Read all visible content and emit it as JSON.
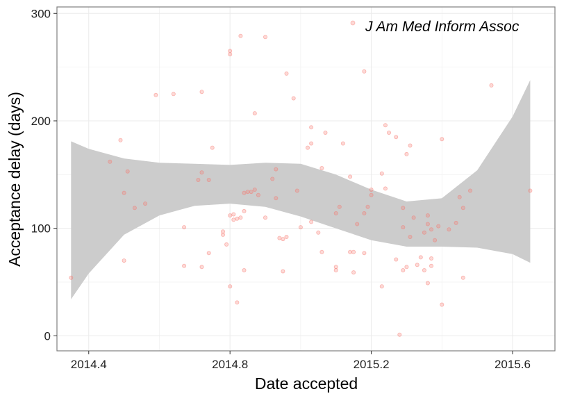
{
  "chart_data": {
    "type": "scatter",
    "title": "",
    "xlabel": "Date accepted",
    "ylabel": "Acceptance delay (days)",
    "xlim": [
      2014.31,
      2015.72
    ],
    "ylim": [
      -14,
      306
    ],
    "x_ticks": [
      "2014.4",
      "2014.8",
      "2015.2",
      "2015.6"
    ],
    "x_tick_values": [
      2014.4,
      2014.8,
      2015.2,
      2015.6
    ],
    "y_ticks": [
      "0",
      "100",
      "200",
      "300"
    ],
    "y_tick_values": [
      0,
      100,
      200,
      300
    ],
    "grid": true,
    "legend": "top-right",
    "series": [
      {
        "name": "J Am Med Inform Assoc",
        "color": "#f8766d",
        "points": [
          [
            2014.35,
            54
          ],
          [
            2014.46,
            162
          ],
          [
            2014.49,
            182
          ],
          [
            2014.5,
            133
          ],
          [
            2014.5,
            70
          ],
          [
            2014.51,
            153
          ],
          [
            2014.53,
            119
          ],
          [
            2014.56,
            123
          ],
          [
            2014.59,
            224
          ],
          [
            2014.64,
            225
          ],
          [
            2014.67,
            101
          ],
          [
            2014.67,
            65
          ],
          [
            2014.71,
            145
          ],
          [
            2014.72,
            227
          ],
          [
            2014.72,
            152
          ],
          [
            2014.72,
            64
          ],
          [
            2014.74,
            145
          ],
          [
            2014.74,
            77
          ],
          [
            2014.75,
            175
          ],
          [
            2014.78,
            97
          ],
          [
            2014.78,
            94
          ],
          [
            2014.79,
            85
          ],
          [
            2014.8,
            265
          ],
          [
            2014.8,
            262
          ],
          [
            2014.8,
            112
          ],
          [
            2014.8,
            46
          ],
          [
            2014.81,
            113
          ],
          [
            2014.81,
            108
          ],
          [
            2014.82,
            109
          ],
          [
            2014.82,
            31
          ],
          [
            2014.83,
            110
          ],
          [
            2014.83,
            279
          ],
          [
            2014.84,
            116
          ],
          [
            2014.84,
            133
          ],
          [
            2014.84,
            61
          ],
          [
            2014.85,
            134
          ],
          [
            2014.86,
            134
          ],
          [
            2014.87,
            136
          ],
          [
            2014.87,
            207
          ],
          [
            2014.88,
            131
          ],
          [
            2014.9,
            278
          ],
          [
            2014.9,
            110
          ],
          [
            2014.92,
            146
          ],
          [
            2014.93,
            128
          ],
          [
            2014.93,
            155
          ],
          [
            2014.94,
            91
          ],
          [
            2014.95,
            90
          ],
          [
            2014.95,
            60
          ],
          [
            2014.96,
            92
          ],
          [
            2014.96,
            244
          ],
          [
            2014.98,
            221
          ],
          [
            2014.99,
            135
          ],
          [
            2015.0,
            101
          ],
          [
            2015.02,
            175
          ],
          [
            2015.03,
            179
          ],
          [
            2015.03,
            194
          ],
          [
            2015.03,
            106
          ],
          [
            2015.05,
            96
          ],
          [
            2015.06,
            78
          ],
          [
            2015.06,
            156
          ],
          [
            2015.07,
            189
          ],
          [
            2015.1,
            114
          ],
          [
            2015.1,
            64
          ],
          [
            2015.1,
            61
          ],
          [
            2015.11,
            120
          ],
          [
            2015.12,
            179
          ],
          [
            2015.14,
            148
          ],
          [
            2015.14,
            78
          ],
          [
            2015.15,
            78
          ],
          [
            2015.15,
            59
          ],
          [
            2015.16,
            104
          ],
          [
            2015.18,
            246
          ],
          [
            2015.18,
            114
          ],
          [
            2015.18,
            77
          ],
          [
            2015.19,
            120
          ],
          [
            2015.2,
            131
          ],
          [
            2015.2,
            136
          ],
          [
            2015.23,
            151
          ],
          [
            2015.23,
            46
          ],
          [
            2015.24,
            196
          ],
          [
            2015.24,
            137
          ],
          [
            2015.25,
            189
          ],
          [
            2015.27,
            185
          ],
          [
            2015.27,
            71
          ],
          [
            2015.28,
            1
          ],
          [
            2015.29,
            119
          ],
          [
            2015.29,
            101
          ],
          [
            2015.29,
            61
          ],
          [
            2015.3,
            169
          ],
          [
            2015.3,
            64
          ],
          [
            2015.31,
            177
          ],
          [
            2015.31,
            92
          ],
          [
            2015.32,
            110
          ],
          [
            2015.33,
            66
          ],
          [
            2015.34,
            73
          ],
          [
            2015.35,
            96
          ],
          [
            2015.35,
            61
          ],
          [
            2015.36,
            112
          ],
          [
            2015.36,
            104
          ],
          [
            2015.36,
            49
          ],
          [
            2015.37,
            99
          ],
          [
            2015.37,
            72
          ],
          [
            2015.37,
            65
          ],
          [
            2015.38,
            89
          ],
          [
            2015.39,
            102
          ],
          [
            2015.4,
            183
          ],
          [
            2015.4,
            29
          ],
          [
            2015.42,
            99
          ],
          [
            2015.44,
            105
          ],
          [
            2015.45,
            129
          ],
          [
            2015.46,
            119
          ],
          [
            2015.46,
            54
          ],
          [
            2015.48,
            135
          ],
          [
            2015.54,
            233
          ],
          [
            2015.65,
            135
          ]
        ]
      }
    ],
    "confidence_band": {
      "x": [
        2014.35,
        2014.4,
        2014.5,
        2014.6,
        2014.7,
        2014.8,
        2014.9,
        2015.0,
        2015.1,
        2015.2,
        2015.3,
        2015.4,
        2015.5,
        2015.6,
        2015.65
      ],
      "upper": [
        181,
        174,
        165,
        161,
        160,
        159,
        161,
        160,
        150,
        136,
        125,
        128,
        154,
        204,
        238
      ],
      "lower": [
        34,
        58,
        94,
        112,
        121,
        123,
        120,
        111,
        100,
        89,
        83,
        83,
        82,
        76,
        68
      ],
      "color": "#cccccc"
    }
  }
}
